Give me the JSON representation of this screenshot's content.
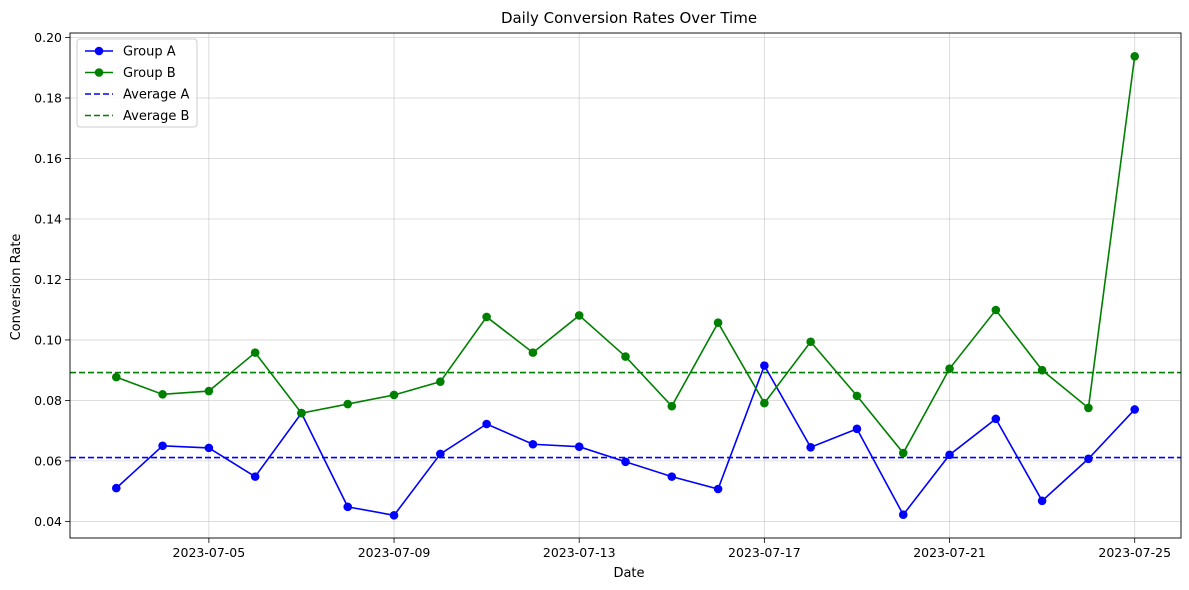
{
  "chart_data": {
    "type": "line",
    "title": "Daily Conversion Rates Over Time",
    "xlabel": "Date",
    "ylabel": "Conversion Rate",
    "x": [
      "2023-07-03",
      "2023-07-04",
      "2023-07-05",
      "2023-07-06",
      "2023-07-07",
      "2023-07-08",
      "2023-07-09",
      "2023-07-10",
      "2023-07-11",
      "2023-07-12",
      "2023-07-13",
      "2023-07-14",
      "2023-07-15",
      "2023-07-16",
      "2023-07-17",
      "2023-07-18",
      "2023-07-19",
      "2023-07-20",
      "2023-07-21",
      "2023-07-22",
      "2023-07-23",
      "2023-07-24",
      "2023-07-25"
    ],
    "x_ticks": [
      "2023-07-05",
      "2023-07-09",
      "2023-07-13",
      "2023-07-17",
      "2023-07-21",
      "2023-07-25"
    ],
    "xlim": [
      "2023-07-02",
      "2023-07-26"
    ],
    "y_ticks": [
      "0.04",
      "0.06",
      "0.08",
      "0.10",
      "0.12",
      "0.14",
      "0.16",
      "0.18",
      "0.20"
    ],
    "ylim": [
      0.0345,
      0.2015
    ],
    "grid": true,
    "legend_position": "top-left",
    "series": [
      {
        "name": "Group A",
        "color": "#0000ff",
        "style": "solid-markers",
        "values": [
          0.051,
          0.065,
          0.0643,
          0.0548,
          0.0758,
          0.0448,
          0.042,
          0.0623,
          0.0722,
          0.0655,
          0.0647,
          0.0597,
          0.0548,
          0.0507,
          0.0915,
          0.0645,
          0.0706,
          0.0422,
          0.062,
          0.0739,
          0.0468,
          0.0607,
          0.077
        ]
      },
      {
        "name": "Group B",
        "color": "#008000",
        "style": "solid-markers",
        "values": [
          0.0877,
          0.082,
          0.0831,
          0.0958,
          0.0758,
          0.0788,
          0.0818,
          0.0862,
          0.1076,
          0.0958,
          0.1081,
          0.0945,
          0.0781,
          0.1057,
          0.0791,
          0.0994,
          0.0815,
          0.0626,
          0.0905,
          0.1099,
          0.09,
          0.0775,
          0.1938
        ]
      }
    ],
    "reference_lines": [
      {
        "name": "Average A",
        "color": "#0000ff",
        "style": "dashed",
        "value": 0.0611
      },
      {
        "name": "Average B",
        "color": "#008000",
        "style": "dashed",
        "value": 0.0892
      }
    ]
  }
}
